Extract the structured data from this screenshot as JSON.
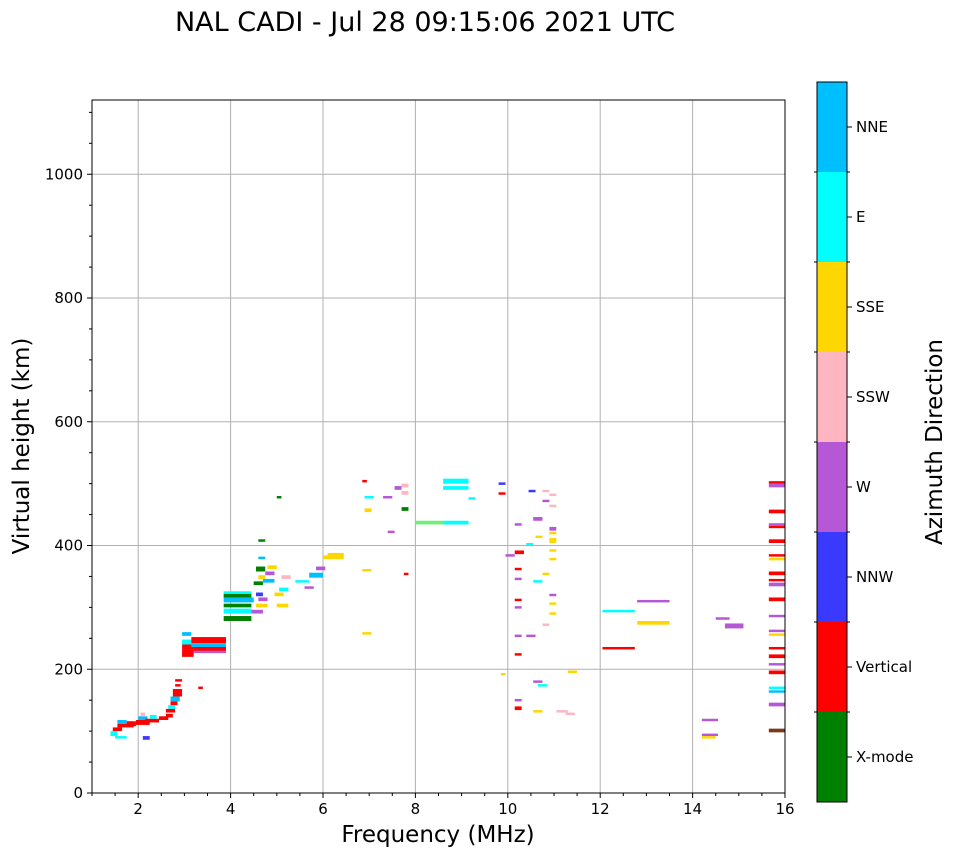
{
  "chart_data": {
    "type": "scatter",
    "title": "NAL CADI - Jul 28 09:15:06 2021 UTC",
    "xlabel": "Frequency (MHz)",
    "ylabel": "Virtual height (km)",
    "xlim": [
      1,
      16
    ],
    "ylim": [
      0,
      1120
    ],
    "xticks": [
      2,
      4,
      6,
      8,
      10,
      12,
      14,
      16
    ],
    "yticks": [
      0,
      200,
      400,
      600,
      800,
      1000
    ],
    "grid": true,
    "colorbar": {
      "label": "Azimuth Direction",
      "categories": [
        "X-mode",
        "Vertical",
        "NNW",
        "W",
        "SSW",
        "SSE",
        "E",
        "NNE"
      ],
      "colors": {
        "X-mode": "#008000",
        "Vertical": "#ff0000",
        "NNW": "#3a3aff",
        "W": "#b657d6",
        "SSW": "#ffb6c1",
        "SSE": "#ffd700",
        "E": "#00ffff",
        "NNE": "#00bfff",
        "dark": "#7a3a1a",
        "mix": "#6ef07a"
      }
    },
    "segments": [
      [
        1.4,
        1.55,
        92,
        100,
        "E"
      ],
      [
        1.5,
        1.75,
        88,
        92,
        "E"
      ],
      [
        1.45,
        1.65,
        100,
        106,
        "Vertical"
      ],
      [
        1.55,
        1.9,
        106,
        112,
        "Vertical"
      ],
      [
        1.55,
        1.75,
        112,
        118,
        "NNE"
      ],
      [
        1.75,
        1.95,
        108,
        116,
        "Vertical"
      ],
      [
        1.95,
        2.25,
        110,
        118,
        "Vertical"
      ],
      [
        2.0,
        2.2,
        118,
        124,
        "NNE"
      ],
      [
        2.15,
        2.45,
        114,
        120,
        "Vertical"
      ],
      [
        2.25,
        2.4,
        120,
        126,
        "E"
      ],
      [
        2.45,
        2.65,
        118,
        124,
        "Vertical"
      ],
      [
        2.05,
        2.15,
        124,
        130,
        "SSW"
      ],
      [
        2.1,
        2.25,
        86,
        92,
        "NNW"
      ],
      [
        2.6,
        2.75,
        122,
        128,
        "Vertical"
      ],
      [
        2.6,
        2.8,
        130,
        136,
        "Vertical"
      ],
      [
        2.65,
        2.8,
        136,
        142,
        "E"
      ],
      [
        2.7,
        2.85,
        142,
        148,
        "Vertical"
      ],
      [
        2.7,
        2.9,
        148,
        156,
        "NNE"
      ],
      [
        2.75,
        2.95,
        156,
        168,
        "Vertical"
      ],
      [
        2.8,
        2.92,
        172,
        176,
        "Vertical"
      ],
      [
        2.8,
        2.95,
        180,
        184,
        "Vertical"
      ],
      [
        2.95,
        3.2,
        220,
        232,
        "Vertical"
      ],
      [
        2.95,
        3.2,
        232,
        240,
        "Vertical"
      ],
      [
        2.95,
        3.15,
        240,
        248,
        "E"
      ],
      [
        2.95,
        3.15,
        254,
        260,
        "NNE"
      ],
      [
        3.15,
        3.9,
        242,
        252,
        "Vertical"
      ],
      [
        3.15,
        3.9,
        236,
        242,
        "NNE"
      ],
      [
        3.2,
        3.9,
        226,
        234,
        "W"
      ],
      [
        3.2,
        3.9,
        230,
        236,
        "Vertical"
      ],
      [
        3.3,
        3.4,
        168,
        172,
        "Vertical"
      ],
      [
        3.85,
        4.45,
        278,
        286,
        "X-mode"
      ],
      [
        3.85,
        4.45,
        290,
        298,
        "E"
      ],
      [
        3.85,
        4.45,
        300,
        306,
        "X-mode"
      ],
      [
        3.85,
        4.5,
        308,
        316,
        "NNE"
      ],
      [
        3.85,
        4.45,
        316,
        322,
        "X-mode"
      ],
      [
        3.85,
        4.45,
        322,
        326,
        "E"
      ],
      [
        4.45,
        4.7,
        290,
        296,
        "W"
      ],
      [
        4.55,
        4.8,
        300,
        306,
        "SSE"
      ],
      [
        4.6,
        4.8,
        310,
        316,
        "W"
      ],
      [
        4.55,
        4.7,
        318,
        324,
        "NNW"
      ],
      [
        4.5,
        4.7,
        336,
        342,
        "X-mode"
      ],
      [
        4.6,
        4.75,
        346,
        352,
        "SSE"
      ],
      [
        4.55,
        4.75,
        358,
        366,
        "X-mode"
      ],
      [
        4.6,
        4.75,
        378,
        382,
        "NNE"
      ],
      [
        4.6,
        4.75,
        406,
        410,
        "X-mode"
      ],
      [
        4.7,
        4.95,
        340,
        346,
        "NNE"
      ],
      [
        4.75,
        4.95,
        352,
        358,
        "W"
      ],
      [
        4.8,
        5.0,
        362,
        368,
        "SSE"
      ],
      [
        4.95,
        5.15,
        318,
        324,
        "SSE"
      ],
      [
        5.0,
        5.25,
        300,
        306,
        "SSE"
      ],
      [
        5.05,
        5.25,
        326,
        332,
        "E"
      ],
      [
        5.1,
        5.3,
        346,
        352,
        "SSW"
      ],
      [
        5.4,
        5.7,
        340,
        344,
        "E"
      ],
      [
        5.6,
        5.8,
        330,
        334,
        "W"
      ],
      [
        5.7,
        6.0,
        348,
        356,
        "NNE"
      ],
      [
        5.85,
        6.05,
        360,
        366,
        "W"
      ],
      [
        6.0,
        6.15,
        378,
        384,
        "SSE"
      ],
      [
        6.1,
        6.45,
        378,
        388,
        "SSE"
      ],
      [
        5.0,
        5.1,
        476,
        480,
        "X-mode"
      ],
      [
        6.85,
        7.05,
        358,
        362,
        "SSE"
      ],
      [
        6.85,
        7.05,
        256,
        260,
        "SSE"
      ],
      [
        6.9,
        7.05,
        454,
        460,
        "SSE"
      ],
      [
        6.9,
        7.1,
        476,
        480,
        "E"
      ],
      [
        6.85,
        6.95,
        502,
        506,
        "Vertical"
      ],
      [
        7.3,
        7.5,
        476,
        480,
        "W"
      ],
      [
        7.4,
        7.55,
        420,
        424,
        "W"
      ],
      [
        7.55,
        7.7,
        490,
        496,
        "W"
      ],
      [
        7.7,
        7.85,
        482,
        488,
        "SSW"
      ],
      [
        7.7,
        7.85,
        494,
        500,
        "SSW"
      ],
      [
        7.75,
        7.85,
        352,
        356,
        "Vertical"
      ],
      [
        7.7,
        7.85,
        456,
        462,
        "X-mode"
      ],
      [
        8.0,
        8.6,
        434,
        440,
        "mix"
      ],
      [
        8.6,
        9.15,
        434,
        440,
        "E"
      ],
      [
        8.6,
        9.15,
        500,
        508,
        "E"
      ],
      [
        8.6,
        9.15,
        490,
        496,
        "E"
      ],
      [
        9.15,
        9.3,
        474,
        478,
        "E"
      ],
      [
        9.8,
        9.95,
        482,
        486,
        "Vertical"
      ],
      [
        9.8,
        9.95,
        498,
        502,
        "NNW"
      ],
      [
        9.85,
        9.95,
        190,
        194,
        "SSE"
      ],
      [
        9.95,
        10.15,
        382,
        386,
        "W"
      ],
      [
        10.15,
        10.35,
        386,
        392,
        "Vertical"
      ],
      [
        10.15,
        10.3,
        432,
        436,
        "W"
      ],
      [
        10.15,
        10.3,
        360,
        364,
        "Vertical"
      ],
      [
        10.15,
        10.3,
        344,
        348,
        "W"
      ],
      [
        10.15,
        10.3,
        310,
        314,
        "Vertical"
      ],
      [
        10.15,
        10.3,
        298,
        302,
        "W"
      ],
      [
        10.15,
        10.3,
        252,
        256,
        "W"
      ],
      [
        10.15,
        10.3,
        222,
        226,
        "Vertical"
      ],
      [
        10.15,
        10.3,
        148,
        152,
        "W"
      ],
      [
        10.15,
        10.3,
        134,
        140,
        "Vertical"
      ],
      [
        10.4,
        10.55,
        400,
        404,
        "E"
      ],
      [
        10.4,
        10.6,
        252,
        256,
        "W"
      ],
      [
        10.45,
        10.6,
        486,
        490,
        "NNW"
      ],
      [
        10.55,
        10.75,
        340,
        344,
        "E"
      ],
      [
        10.55,
        10.75,
        440,
        446,
        "W"
      ],
      [
        10.6,
        10.75,
        412,
        416,
        "SSE"
      ],
      [
        10.55,
        10.75,
        178,
        182,
        "W"
      ],
      [
        10.65,
        10.85,
        172,
        176,
        "E"
      ],
      [
        10.55,
        10.75,
        130,
        134,
        "SSE"
      ],
      [
        10.75,
        10.9,
        352,
        356,
        "SSE"
      ],
      [
        10.75,
        10.9,
        270,
        274,
        "SSW"
      ],
      [
        10.75,
        10.9,
        486,
        490,
        "SSW"
      ],
      [
        10.75,
        10.9,
        470,
        474,
        "W"
      ],
      [
        10.9,
        11.05,
        480,
        484,
        "SSW"
      ],
      [
        10.9,
        11.05,
        462,
        466,
        "SSW"
      ],
      [
        10.9,
        11.05,
        424,
        430,
        "W"
      ],
      [
        10.9,
        11.05,
        418,
        422,
        "SSE"
      ],
      [
        10.9,
        11.05,
        404,
        412,
        "SSE"
      ],
      [
        10.9,
        11.05,
        390,
        394,
        "SSE"
      ],
      [
        10.9,
        11.05,
        376,
        380,
        "SSE"
      ],
      [
        10.9,
        11.05,
        318,
        322,
        "W"
      ],
      [
        10.9,
        11.05,
        304,
        308,
        "SSE"
      ],
      [
        10.9,
        11.05,
        288,
        292,
        "SSE"
      ],
      [
        11.05,
        11.3,
        130,
        134,
        "SSW"
      ],
      [
        11.25,
        11.45,
        126,
        130,
        "SSW"
      ],
      [
        11.3,
        11.5,
        194,
        198,
        "SSE"
      ],
      [
        12.05,
        12.75,
        292,
        296,
        "E"
      ],
      [
        12.05,
        12.75,
        232,
        236,
        "Vertical"
      ],
      [
        12.8,
        13.5,
        308,
        312,
        "W"
      ],
      [
        12.8,
        13.5,
        272,
        278,
        "SSE"
      ],
      [
        14.2,
        14.55,
        116,
        120,
        "W"
      ],
      [
        14.2,
        14.55,
        92,
        96,
        "W"
      ],
      [
        14.2,
        14.5,
        88,
        92,
        "SSE"
      ],
      [
        14.5,
        14.8,
        280,
        284,
        "W"
      ],
      [
        14.7,
        15.1,
        266,
        274,
        "W"
      ],
      [
        15.65,
        16.0,
        98,
        104,
        "dark"
      ],
      [
        15.65,
        16.0,
        140,
        146,
        "W"
      ],
      [
        15.65,
        16.0,
        162,
        166,
        "NNE"
      ],
      [
        15.65,
        16.0,
        168,
        172,
        "E"
      ],
      [
        15.65,
        16.0,
        192,
        198,
        "Vertical"
      ],
      [
        15.65,
        16.0,
        206,
        210,
        "W"
      ],
      [
        15.65,
        16.0,
        218,
        224,
        "Vertical"
      ],
      [
        15.65,
        16.0,
        232,
        236,
        "Vertical"
      ],
      [
        15.65,
        16.0,
        254,
        258,
        "SSE"
      ],
      [
        15.65,
        16.0,
        260,
        264,
        "W"
      ],
      [
        15.65,
        16.0,
        284,
        288,
        "W"
      ],
      [
        15.65,
        16.0,
        310,
        316,
        "Vertical"
      ],
      [
        15.65,
        16.0,
        334,
        340,
        "W"
      ],
      [
        15.65,
        16.0,
        342,
        346,
        "Vertical"
      ],
      [
        15.65,
        16.0,
        352,
        358,
        "Vertical"
      ],
      [
        15.65,
        16.0,
        376,
        380,
        "SSE"
      ],
      [
        15.65,
        16.0,
        382,
        386,
        "Vertical"
      ],
      [
        15.65,
        16.0,
        404,
        410,
        "Vertical"
      ],
      [
        15.65,
        16.0,
        428,
        432,
        "Vertical"
      ],
      [
        15.65,
        16.0,
        432,
        436,
        "W"
      ],
      [
        15.65,
        16.0,
        452,
        458,
        "Vertical"
      ],
      [
        15.65,
        16.0,
        494,
        500,
        "W"
      ],
      [
        15.65,
        16.0,
        500,
        504,
        "Vertical"
      ]
    ]
  }
}
